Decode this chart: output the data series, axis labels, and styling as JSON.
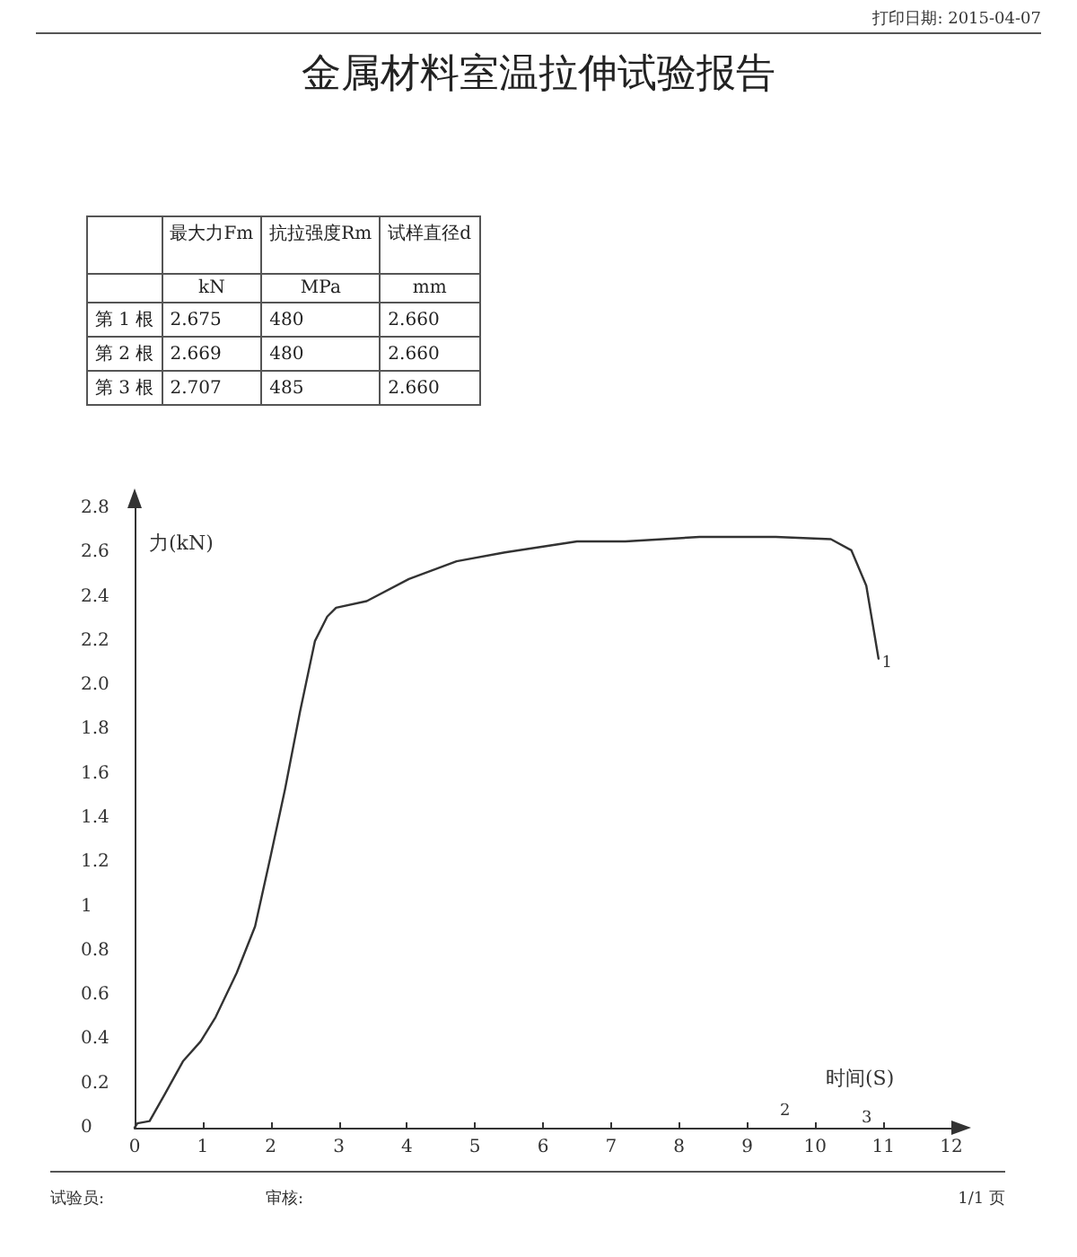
{
  "chart_data": [
    {
      "type": "other",
      "title": "金属材料室温拉伸试验报告",
      "annotations": [
        "最大力Fm",
        "抗拉强度Rm",
        "试样直径d",
        "kN",
        "MPa",
        "mm",
        "第 1 根",
        "2.675",
        "480",
        "2.660",
        "第 2 根",
        "2.669",
        "480",
        "2.660",
        "第 3 根",
        "2.707",
        "485",
        "2.660"
      ]
    },
    {
      "type": "line",
      "xlabel": "时间(S)",
      "ylabel": "力(kN)",
      "x": [
        0,
        0.04,
        0.22,
        0.44,
        0.71,
        0.97,
        1.19,
        1.5,
        1.77,
        2.0,
        2.21,
        2.43,
        2.65,
        2.83,
        2.96,
        3.41,
        4.03,
        4.73,
        5.44,
        6.5,
        7.21,
        8.3,
        9.42,
        10.23,
        10.53,
        10.75,
        10.93
      ],
      "values": [
        0,
        0.02,
        0.03,
        0.15,
        0.3,
        0.39,
        0.5,
        0.7,
        0.91,
        1.23,
        1.53,
        1.88,
        2.2,
        2.31,
        2.35,
        2.38,
        2.48,
        2.56,
        2.6,
        2.65,
        2.65,
        2.67,
        2.67,
        2.66,
        2.61,
        2.45,
        2.12
      ],
      "color": "#333333",
      "xlim": [
        0,
        12
      ],
      "xticks": [
        0,
        1,
        2,
        3,
        4,
        5,
        6,
        7,
        8,
        9,
        10,
        11,
        12
      ],
      "ylim": [
        0,
        2.8
      ],
      "yticks": [
        0,
        0.2,
        0.4,
        0.6,
        0.8,
        1,
        1.2,
        1.4,
        1.6,
        1.8,
        {
          "value": 2,
          "label": "2.0"
        },
        2.2,
        2.4,
        2.6,
        2.8
      ],
      "grid": false,
      "marker": "none",
      "line_style": "solid",
      "annotations": [
        "打印日期: 2015-04-07",
        "试验员:",
        "审核:",
        "1/1 页",
        {
          "text": "1",
          "x": 10.95,
          "y": 2.1
        },
        "2",
        "3"
      ]
    }
  ]
}
